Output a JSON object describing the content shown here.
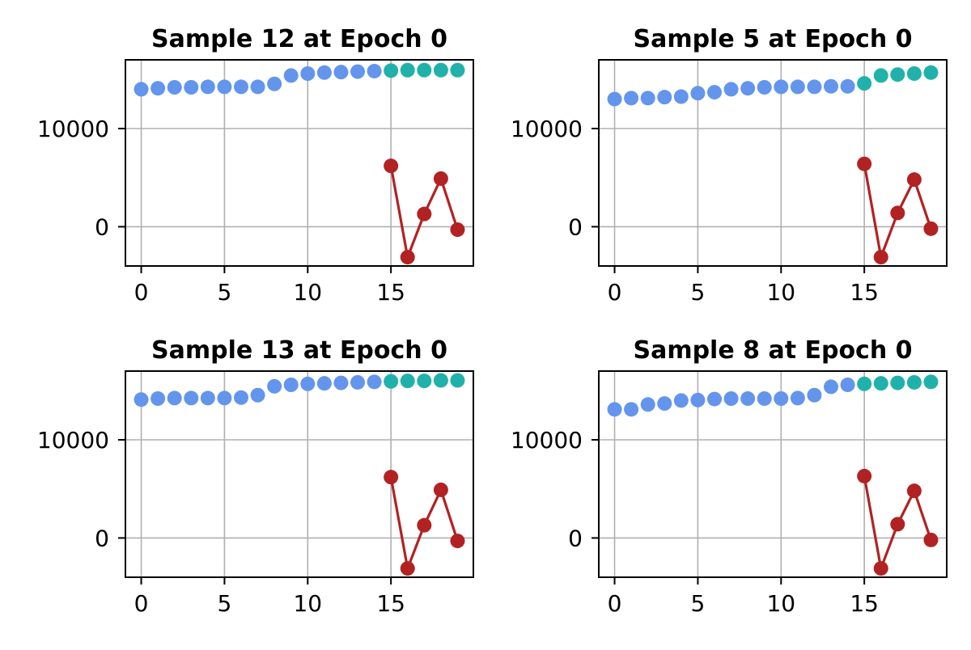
{
  "chart_data": [
    {
      "type": "line",
      "title": "Sample 12 at Epoch 0",
      "xlabel": "",
      "ylabel": "",
      "xlim": [
        -0.95,
        19.95
      ],
      "ylim": [
        -4000,
        17000
      ],
      "xticks": [
        0,
        5,
        10,
        15
      ],
      "yticks": [
        0,
        10000
      ],
      "grid": true,
      "series": [
        {
          "color": "#6495ED",
          "marker": "circle",
          "line": false,
          "x": [
            0,
            1,
            2,
            3,
            4,
            5,
            6,
            7,
            8,
            9,
            10,
            11,
            12,
            13,
            14
          ],
          "y": [
            14000,
            14100,
            14200,
            14200,
            14250,
            14250,
            14250,
            14250,
            14550,
            15400,
            15600,
            15700,
            15750,
            15800,
            15850
          ]
        },
        {
          "color": "#20B2AA",
          "marker": "circle",
          "line": false,
          "x": [
            15,
            16,
            17,
            18,
            19
          ],
          "y": [
            15900,
            15950,
            15950,
            15950,
            15950
          ]
        },
        {
          "color": "#B22222",
          "marker": "circle",
          "line": true,
          "x": [
            15,
            16,
            17,
            18,
            19
          ],
          "y": [
            6200,
            -3100,
            1300,
            4900,
            -300
          ]
        }
      ]
    },
    {
      "type": "line",
      "title": "Sample 5 at Epoch 0",
      "xlabel": "",
      "ylabel": "",
      "xlim": [
        -0.95,
        19.95
      ],
      "ylim": [
        -4000,
        17000
      ],
      "xticks": [
        0,
        5,
        10,
        15
      ],
      "yticks": [
        0,
        10000
      ],
      "grid": true,
      "series": [
        {
          "color": "#6495ED",
          "marker": "circle",
          "line": false,
          "x": [
            0,
            1,
            2,
            3,
            4,
            5,
            6,
            7,
            8,
            9,
            10,
            11,
            12,
            13,
            14
          ],
          "y": [
            13000,
            13100,
            13100,
            13200,
            13250,
            13600,
            13700,
            14000,
            14100,
            14200,
            14250,
            14250,
            14250,
            14300,
            14300
          ]
        },
        {
          "color": "#20B2AA",
          "marker": "circle",
          "line": false,
          "x": [
            15,
            16,
            17,
            18,
            19
          ],
          "y": [
            14600,
            15400,
            15500,
            15600,
            15700
          ]
        },
        {
          "color": "#B22222",
          "marker": "circle",
          "line": true,
          "x": [
            15,
            16,
            17,
            18,
            19
          ],
          "y": [
            6400,
            -3100,
            1400,
            4800,
            -200
          ]
        }
      ]
    },
    {
      "type": "line",
      "title": "Sample 13 at Epoch 0",
      "xlabel": "",
      "ylabel": "",
      "xlim": [
        -0.95,
        19.95
      ],
      "ylim": [
        -4000,
        17000
      ],
      "xticks": [
        0,
        5,
        10,
        15
      ],
      "yticks": [
        0,
        10000
      ],
      "grid": true,
      "series": [
        {
          "color": "#6495ED",
          "marker": "circle",
          "line": false,
          "x": [
            0,
            1,
            2,
            3,
            4,
            5,
            6,
            7,
            8,
            9,
            10,
            11,
            12,
            13,
            14
          ],
          "y": [
            14100,
            14200,
            14250,
            14250,
            14250,
            14250,
            14300,
            14550,
            15450,
            15600,
            15700,
            15750,
            15800,
            15850,
            15900
          ]
        },
        {
          "color": "#20B2AA",
          "marker": "circle",
          "line": false,
          "x": [
            15,
            16,
            17,
            18,
            19
          ],
          "y": [
            15950,
            16000,
            16000,
            16050,
            16050
          ]
        },
        {
          "color": "#B22222",
          "marker": "circle",
          "line": true,
          "x": [
            15,
            16,
            17,
            18,
            19
          ],
          "y": [
            6200,
            -3100,
            1300,
            4900,
            -300
          ]
        }
      ]
    },
    {
      "type": "line",
      "title": "Sample 8 at Epoch 0",
      "xlabel": "",
      "ylabel": "",
      "xlim": [
        -0.95,
        19.95
      ],
      "ylim": [
        -4000,
        17000
      ],
      "xticks": [
        0,
        5,
        10,
        15
      ],
      "yticks": [
        0,
        10000
      ],
      "grid": true,
      "series": [
        {
          "color": "#6495ED",
          "marker": "circle",
          "line": false,
          "x": [
            0,
            1,
            2,
            3,
            4,
            5,
            6,
            7,
            8,
            9,
            10,
            11,
            12,
            13,
            14
          ],
          "y": [
            13100,
            13100,
            13600,
            13700,
            14000,
            14050,
            14150,
            14200,
            14200,
            14200,
            14200,
            14250,
            14550,
            15400,
            15600
          ]
        },
        {
          "color": "#20B2AA",
          "marker": "circle",
          "line": false,
          "x": [
            15,
            16,
            17,
            18,
            19
          ],
          "y": [
            15700,
            15750,
            15800,
            15850,
            15900
          ]
        },
        {
          "color": "#B22222",
          "marker": "circle",
          "line": true,
          "x": [
            15,
            16,
            17,
            18,
            19
          ],
          "y": [
            6300,
            -3100,
            1400,
            4800,
            -200
          ]
        }
      ]
    }
  ]
}
